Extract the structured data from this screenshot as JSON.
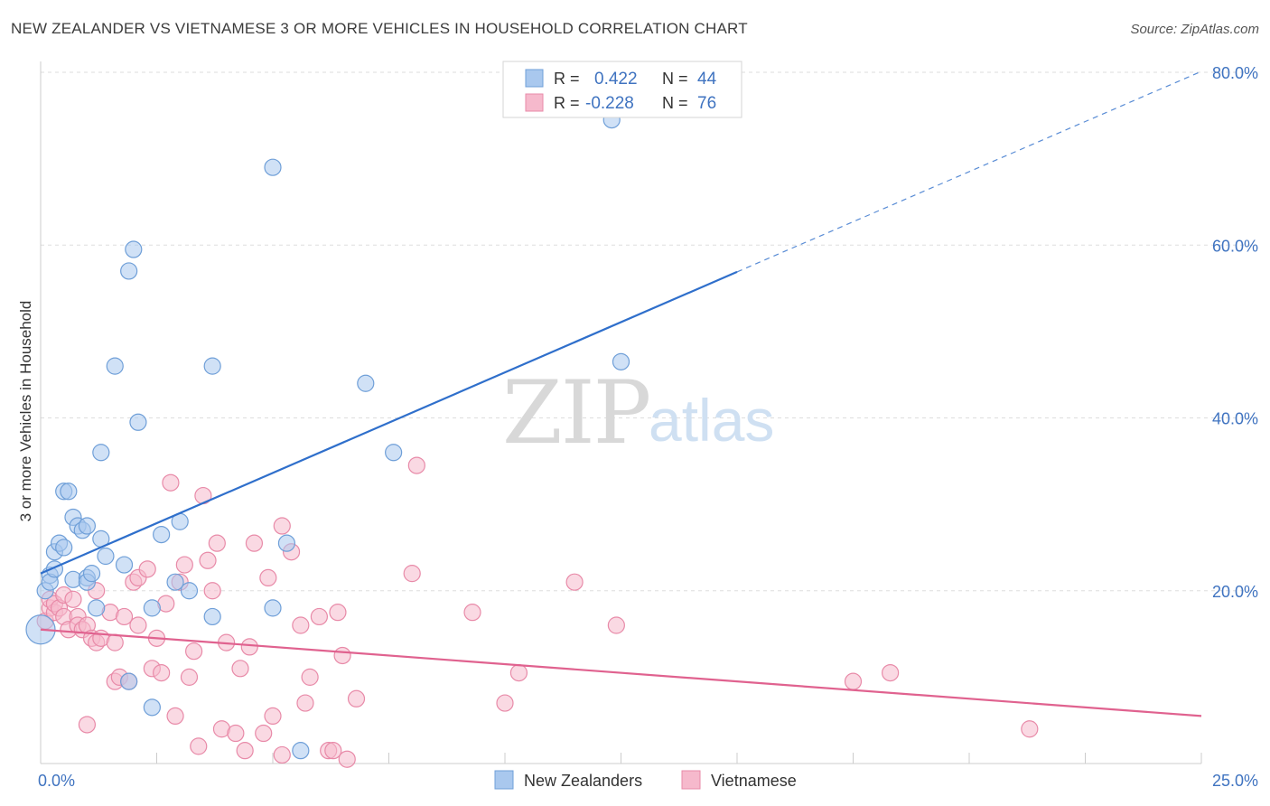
{
  "title": "NEW ZEALANDER VS VIETNAMESE 3 OR MORE VEHICLES IN HOUSEHOLD CORRELATION CHART",
  "source": "Source: ZipAtlas.com",
  "watermark": {
    "zip": "ZIP",
    "atlas": "atlas"
  },
  "colors": {
    "blue_fill": "#a9c8ee",
    "blue_stroke": "#6f9fd8",
    "blue_line": "#2f6fcb",
    "pink_fill": "#f6b9cc",
    "pink_stroke": "#e88aa8",
    "pink_line": "#e0628f",
    "axis_text": "#3f73c0",
    "grid": "#dddddd"
  },
  "legend_top": {
    "rows": [
      {
        "r_label": "R =",
        "r_value": "0.422",
        "n_label": "N =",
        "n_value": "44",
        "series": "blue"
      },
      {
        "r_label": "R =",
        "r_value": "-0.228",
        "n_label": "N =",
        "n_value": "76",
        "series": "pink"
      }
    ]
  },
  "chart_data": {
    "type": "scatter",
    "title": "NEW ZEALANDER VS VIETNAMESE 3 OR MORE VEHICLES IN HOUSEHOLD CORRELATION CHART",
    "xlabel": "",
    "ylabel": "3 or more Vehicles in Household",
    "xlim": [
      0,
      25
    ],
    "ylim": [
      0,
      80
    ],
    "x_tick_labels": [
      "0.0%",
      "25.0%"
    ],
    "y_ticks": [
      20,
      40,
      60,
      80
    ],
    "y_tick_labels": [
      "20.0%",
      "40.0%",
      "60.0%",
      "80.0%"
    ],
    "grid": true,
    "legend_position": "bottom",
    "series": [
      {
        "name": "New Zealanders",
        "color": "blue",
        "r": 0.422,
        "n": 44,
        "trend": {
          "x0": 0,
          "y0": 22.0,
          "x1": 15,
          "y1": 56.9,
          "dashed_to_x": 25,
          "dashed_to_y": 80.1
        },
        "points": [
          [
            0.0,
            15.5
          ],
          [
            0.1,
            20.0
          ],
          [
            0.2,
            21.8
          ],
          [
            0.2,
            21.0
          ],
          [
            0.3,
            22.5
          ],
          [
            0.3,
            24.5
          ],
          [
            0.4,
            25.5
          ],
          [
            0.5,
            31.5
          ],
          [
            0.5,
            25.0
          ],
          [
            0.6,
            31.5
          ],
          [
            0.7,
            21.3
          ],
          [
            0.7,
            28.5
          ],
          [
            0.8,
            27.5
          ],
          [
            0.9,
            27.0
          ],
          [
            1.0,
            21.5
          ],
          [
            1.0,
            27.5
          ],
          [
            1.0,
            21.0
          ],
          [
            1.1,
            22.0
          ],
          [
            1.2,
            18.0
          ],
          [
            1.3,
            26.0
          ],
          [
            1.3,
            36.0
          ],
          [
            1.4,
            24.0
          ],
          [
            1.6,
            46.0
          ],
          [
            1.8,
            23.0
          ],
          [
            1.9,
            57.0
          ],
          [
            1.9,
            9.5
          ],
          [
            2.0,
            59.5
          ],
          [
            2.1,
            39.5
          ],
          [
            2.4,
            18.0
          ],
          [
            2.4,
            6.5
          ],
          [
            2.6,
            26.5
          ],
          [
            2.9,
            21.0
          ],
          [
            3.0,
            28.0
          ],
          [
            3.2,
            20.0
          ],
          [
            3.7,
            17.0
          ],
          [
            3.7,
            46.0
          ],
          [
            5.0,
            69.0
          ],
          [
            5.0,
            18.0
          ],
          [
            5.3,
            25.5
          ],
          [
            5.6,
            1.5
          ],
          [
            7.0,
            44.0
          ],
          [
            7.6,
            36.0
          ],
          [
            12.5,
            46.5
          ],
          [
            12.3,
            74.5
          ]
        ]
      },
      {
        "name": "Vietnamese",
        "color": "pink",
        "r": -0.228,
        "n": 76,
        "trend": {
          "x0": 0,
          "y0": 15.5,
          "x1": 25,
          "y1": 5.5
        },
        "points": [
          [
            0.1,
            16.5
          ],
          [
            0.2,
            18.0
          ],
          [
            0.2,
            19.0
          ],
          [
            0.3,
            17.5
          ],
          [
            0.3,
            18.5
          ],
          [
            0.4,
            18.0
          ],
          [
            0.5,
            17.0
          ],
          [
            0.5,
            19.5
          ],
          [
            0.6,
            15.5
          ],
          [
            0.7,
            19.0
          ],
          [
            0.8,
            17.0
          ],
          [
            0.8,
            16.0
          ],
          [
            0.9,
            15.5
          ],
          [
            1.0,
            16.0
          ],
          [
            1.0,
            4.5
          ],
          [
            1.1,
            14.5
          ],
          [
            1.2,
            14.0
          ],
          [
            1.2,
            20.0
          ],
          [
            1.3,
            14.5
          ],
          [
            1.5,
            17.5
          ],
          [
            1.6,
            14.0
          ],
          [
            1.6,
            9.5
          ],
          [
            1.7,
            10.0
          ],
          [
            1.8,
            17.0
          ],
          [
            1.9,
            9.5
          ],
          [
            2.0,
            21.0
          ],
          [
            2.1,
            21.5
          ],
          [
            2.1,
            16.0
          ],
          [
            2.3,
            22.5
          ],
          [
            2.4,
            11.0
          ],
          [
            2.5,
            14.5
          ],
          [
            2.6,
            10.5
          ],
          [
            2.7,
            18.5
          ],
          [
            2.8,
            32.5
          ],
          [
            2.9,
            5.5
          ],
          [
            3.0,
            21.0
          ],
          [
            3.1,
            23.0
          ],
          [
            3.2,
            10.0
          ],
          [
            3.3,
            13.0
          ],
          [
            3.4,
            2.0
          ],
          [
            3.5,
            31.0
          ],
          [
            3.6,
            23.5
          ],
          [
            3.7,
            20.0
          ],
          [
            3.8,
            25.5
          ],
          [
            3.9,
            4.0
          ],
          [
            4.0,
            14.0
          ],
          [
            4.2,
            3.5
          ],
          [
            4.3,
            11.0
          ],
          [
            4.4,
            1.5
          ],
          [
            4.5,
            13.5
          ],
          [
            4.6,
            25.5
          ],
          [
            4.8,
            3.5
          ],
          [
            4.9,
            21.5
          ],
          [
            5.0,
            5.5
          ],
          [
            5.2,
            1.0
          ],
          [
            5.2,
            27.5
          ],
          [
            5.4,
            24.5
          ],
          [
            5.6,
            16.0
          ],
          [
            5.7,
            7.0
          ],
          [
            5.8,
            10.0
          ],
          [
            6.0,
            17.0
          ],
          [
            6.2,
            1.5
          ],
          [
            6.3,
            1.5
          ],
          [
            6.4,
            17.5
          ],
          [
            6.5,
            12.5
          ],
          [
            6.6,
            0.5
          ],
          [
            6.8,
            7.5
          ],
          [
            8.0,
            22.0
          ],
          [
            8.1,
            34.5
          ],
          [
            9.3,
            17.5
          ],
          [
            10.0,
            7.0
          ],
          [
            10.3,
            10.5
          ],
          [
            11.5,
            21.0
          ],
          [
            12.4,
            16.0
          ],
          [
            17.5,
            9.5
          ],
          [
            18.3,
            10.5
          ],
          [
            21.3,
            4.0
          ]
        ]
      }
    ]
  },
  "legend_bottom": [
    {
      "label": "New Zealanders",
      "series": "blue"
    },
    {
      "label": "Vietnamese",
      "series": "pink"
    }
  ]
}
